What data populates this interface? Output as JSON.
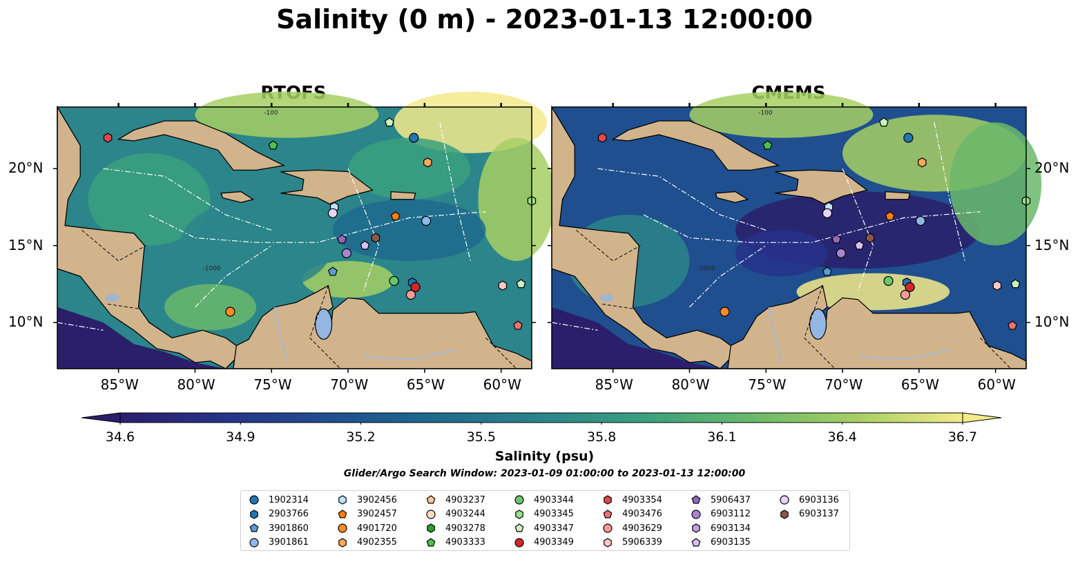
{
  "title": "Salinity (0 m) - 2023-01-13 12:00:00",
  "panels": [
    {
      "title": "RTOFS"
    },
    {
      "title": "CMEMS"
    }
  ],
  "map": {
    "lon_range": [
      -89,
      -58
    ],
    "lat_range": [
      7,
      24
    ],
    "lon_ticks": [
      "85°W",
      "80°W",
      "75°W",
      "70°W",
      "65°W",
      "60°W"
    ],
    "lat_ticks": [
      "20°N",
      "15°N",
      "10°N"
    ],
    "colors": {
      "land": "#d2b48c",
      "water": "#a2b5cd",
      "deep": "#2b1e6b",
      "contour": "#ffffff"
    },
    "contour_labels": [
      "-1000",
      "-100"
    ]
  },
  "colorbar": {
    "label": "Salinity (psu)",
    "min": 34.6,
    "max": 36.7,
    "ticks": [
      "34.6",
      "34.9",
      "35.2",
      "35.5",
      "35.8",
      "36.1",
      "36.4",
      "36.7"
    ],
    "cmap": [
      "#2b1e6b",
      "#27338a",
      "#1f4f8f",
      "#1e6a8d",
      "#2b858a",
      "#3aa07e",
      "#6ab96b",
      "#a7cf63",
      "#f3ea8a"
    ],
    "extend": "both"
  },
  "search_window": "Glider/Argo Search Window: 2023-01-09 01:00:00 to 2023-01-13 12:00:00",
  "legend": [
    {
      "id": "1902314",
      "marker": "circle",
      "color": "#1f77b4"
    },
    {
      "id": "2903766",
      "marker": "hexagon",
      "color": "#1f77b4"
    },
    {
      "id": "3901860",
      "marker": "pentagon",
      "color": "#5b9bd5"
    },
    {
      "id": "3901861",
      "marker": "circle",
      "color": "#8fb8e8"
    },
    {
      "id": "3902456",
      "marker": "hexagon",
      "color": "#bfe3ff"
    },
    {
      "id": "3902457",
      "marker": "pentagon",
      "color": "#ff7f0e"
    },
    {
      "id": "4901720",
      "marker": "circle",
      "color": "#ff8a2a"
    },
    {
      "id": "4902355",
      "marker": "hexagon",
      "color": "#ffa85c"
    },
    {
      "id": "4903237",
      "marker": "pentagon",
      "color": "#ffc89a"
    },
    {
      "id": "4903244",
      "marker": "circle",
      "color": "#ffdcc0"
    },
    {
      "id": "4903278",
      "marker": "hexagon",
      "color": "#2ca02c"
    },
    {
      "id": "4903333",
      "marker": "pentagon",
      "color": "#4fc04f"
    },
    {
      "id": "4903344",
      "marker": "circle",
      "color": "#6cc46c"
    },
    {
      "id": "4903345",
      "marker": "hexagon",
      "color": "#98df8a"
    },
    {
      "id": "4903347",
      "marker": "pentagon",
      "color": "#c9f2c0"
    },
    {
      "id": "4903349",
      "marker": "circle",
      "color": "#d62728"
    },
    {
      "id": "4903354",
      "marker": "hexagon",
      "color": "#e0484a"
    },
    {
      "id": "4903476",
      "marker": "pentagon",
      "color": "#f07070"
    },
    {
      "id": "4903629",
      "marker": "circle",
      "color": "#f49a9a"
    },
    {
      "id": "5906339",
      "marker": "hexagon",
      "color": "#ffc7c7"
    },
    {
      "id": "5906437",
      "marker": "pentagon",
      "color": "#9467bd"
    },
    {
      "id": "6903112",
      "marker": "circle",
      "color": "#a985cf"
    },
    {
      "id": "6903134",
      "marker": "hexagon",
      "color": "#c0a3e3"
    },
    {
      "id": "6903135",
      "marker": "pentagon",
      "color": "#d6c0f2"
    },
    {
      "id": "6903136",
      "marker": "circle",
      "color": "#e6d4fb"
    },
    {
      "id": "6903137",
      "marker": "hexagon",
      "color": "#8c564b"
    }
  ],
  "floats_rtofs": [
    {
      "id": "1902314",
      "lon": -65.7,
      "lat": 22.0
    },
    {
      "id": "4903333",
      "lon": -74.9,
      "lat": 21.5
    },
    {
      "id": "4903347",
      "lon": -67.3,
      "lat": 23.0
    },
    {
      "id": "4903354",
      "lon": -85.7,
      "lat": 22.0
    },
    {
      "id": "4902355",
      "lon": -64.8,
      "lat": 20.4
    },
    {
      "id": "3902456",
      "lon": -70.9,
      "lat": 17.5
    },
    {
      "id": "6903136",
      "lon": -71.0,
      "lat": 17.1
    },
    {
      "id": "3902457",
      "lon": -66.9,
      "lat": 16.9
    },
    {
      "id": "3901861",
      "lon": -64.9,
      "lat": 16.6
    },
    {
      "id": "6903137",
      "lon": -68.2,
      "lat": 15.5
    },
    {
      "id": "5906437",
      "lon": -70.4,
      "lat": 15.4
    },
    {
      "id": "6903135",
      "lon": -68.9,
      "lat": 15.0
    },
    {
      "id": "6903112",
      "lon": -70.1,
      "lat": 14.5
    },
    {
      "id": "3901860",
      "lon": -71.0,
      "lat": 13.3
    },
    {
      "id": "4903344",
      "lon": -67.0,
      "lat": 12.7
    },
    {
      "id": "2903766",
      "lon": -65.8,
      "lat": 12.6
    },
    {
      "id": "4903349",
      "lon": -65.6,
      "lat": 12.3
    },
    {
      "id": "4903629",
      "lon": -65.9,
      "lat": 11.8
    },
    {
      "id": "5906339",
      "lon": -59.9,
      "lat": 12.4
    },
    {
      "id": "4903347",
      "lon": -58.7,
      "lat": 12.5
    },
    {
      "id": "4901720",
      "lon": -77.7,
      "lat": 10.7
    },
    {
      "id": "4903476",
      "lon": -58.9,
      "lat": 9.8
    },
    {
      "id": "4903345",
      "lon": -58.0,
      "lat": 17.9
    }
  ]
}
